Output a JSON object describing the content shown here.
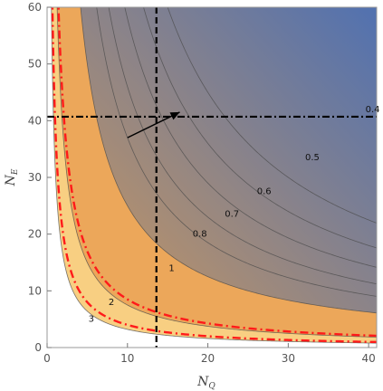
{
  "chart_data": {
    "type": "contour",
    "xlabel": "N",
    "xlabel_sub": "Q",
    "ylabel": "N",
    "ylabel_sub": "E",
    "xlim": [
      0,
      41
    ],
    "ylim": [
      0,
      60
    ],
    "xticks": [
      0,
      10,
      20,
      30,
      40
    ],
    "yticks": [
      0,
      10,
      20,
      30,
      40,
      50,
      60
    ],
    "contours": [
      {
        "label": "0.4",
        "k": 900,
        "label_at": [
          40.5,
          42
        ]
      },
      {
        "label": "0.5",
        "k": 720,
        "label_at": [
          33,
          33.5
        ]
      },
      {
        "label": "0.6",
        "k": 580,
        "label_at": [
          27,
          27.5
        ]
      },
      {
        "label": "0.7",
        "k": 460,
        "label_at": [
          23,
          23.5
        ]
      },
      {
        "label": "0.8",
        "k": 370,
        "label_at": [
          19,
          20
        ]
      },
      {
        "label": "1",
        "k": 250,
        "label_at": [
          15.5,
          14
        ]
      },
      {
        "label": "2",
        "k": 75,
        "label_at": [
          8,
          8
        ]
      },
      {
        "label": "3",
        "k": 32,
        "label_at": [
          5.5,
          5
        ]
      }
    ],
    "region_fills": {
      "beyond_3": "#ffffff",
      "between_3_2": "#f8cf82",
      "between_2_1": "#eca75a",
      "blue_gradient_start": "#c9975f",
      "blue_gradient_end": "#4a6fb5"
    },
    "dashdot_curves": [
      {
        "name": "",
        "k": 85,
        "color": "#ff1a1a"
      },
      {
        "name": "",
        "k": 40,
        "color": "#ff1a1a"
      }
    ],
    "vertical_line_x": 13.6,
    "horizontal_line_y": 40.7,
    "arrow": {
      "from": [
        10,
        37
      ],
      "to": [
        16.5,
        41.5
      ]
    }
  }
}
